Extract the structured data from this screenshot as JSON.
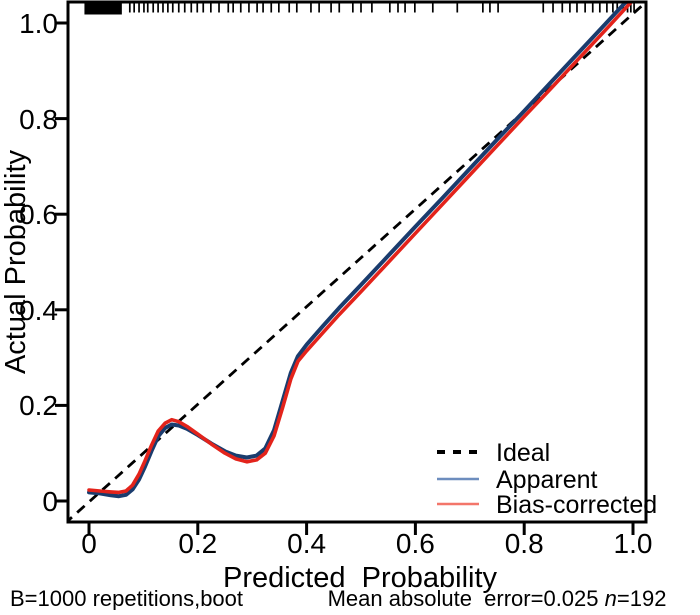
{
  "figure": {
    "bottom_left_note": "B=1000 repetitions,boot",
    "bottom_right_note_prefix": "Mean absolute  error=0.025 ",
    "bottom_right_n_symbol": "n",
    "bottom_right_n_value": "=192"
  },
  "chart_data": {
    "type": "line",
    "title": "",
    "xlabel": "Predicted  Probability",
    "ylabel": "Actual Probability",
    "xlim": [
      -0.04,
      1.02
    ],
    "ylim": [
      -0.05,
      1.04
    ],
    "grid": false,
    "legend_position": "bottom-right",
    "x_tick_values": [
      0,
      0.2,
      0.4,
      0.6,
      0.8,
      1.0
    ],
    "x_tick_labels": [
      "0",
      "0.2",
      "0.4",
      "0.6",
      "0.8",
      "1.0"
    ],
    "y_tick_values": [
      1.0,
      0.8,
      0.6,
      0.4,
      0.2,
      0
    ],
    "y_tick_labels": [
      "1.0",
      "0.8",
      "0.6",
      "0.4",
      "0.2",
      "0"
    ],
    "axis_color": "#000000",
    "rug_color": "#000000",
    "series": [
      {
        "name": "Ideal",
        "style": "dashed",
        "color": "#000000",
        "legend_color": "#000000",
        "points": [
          [
            -0.045,
            -0.048
          ],
          [
            1.03,
            1.05
          ]
        ]
      },
      {
        "name": "Apparent",
        "style": "solid",
        "color": "#1a3c6e",
        "legend_color": "#6d8dbe",
        "points": [
          [
            0.0,
            0.018
          ],
          [
            0.02,
            0.016
          ],
          [
            0.04,
            0.012
          ],
          [
            0.055,
            0.01
          ],
          [
            0.068,
            0.013
          ],
          [
            0.08,
            0.024
          ],
          [
            0.092,
            0.045
          ],
          [
            0.103,
            0.072
          ],
          [
            0.115,
            0.105
          ],
          [
            0.127,
            0.135
          ],
          [
            0.14,
            0.153
          ],
          [
            0.152,
            0.16
          ],
          [
            0.165,
            0.158
          ],
          [
            0.18,
            0.151
          ],
          [
            0.2,
            0.138
          ],
          [
            0.225,
            0.12
          ],
          [
            0.25,
            0.104
          ],
          [
            0.27,
            0.095
          ],
          [
            0.29,
            0.091
          ],
          [
            0.308,
            0.095
          ],
          [
            0.324,
            0.11
          ],
          [
            0.34,
            0.148
          ],
          [
            0.356,
            0.21
          ],
          [
            0.371,
            0.268
          ],
          [
            0.384,
            0.303
          ],
          [
            0.4,
            0.327
          ],
          [
            0.43,
            0.366
          ],
          [
            0.46,
            0.404
          ],
          [
            0.5,
            0.452
          ],
          [
            0.55,
            0.513
          ],
          [
            0.6,
            0.574
          ],
          [
            0.65,
            0.634
          ],
          [
            0.7,
            0.695
          ],
          [
            0.75,
            0.756
          ],
          [
            0.8,
            0.816
          ],
          [
            0.85,
            0.877
          ],
          [
            0.9,
            0.938
          ],
          [
            0.95,
            0.999
          ],
          [
            1.0,
            1.06
          ]
        ]
      },
      {
        "name": "Bias-corrected",
        "style": "solid",
        "color": "#e3231b",
        "legend_color": "#f3766a",
        "points": [
          [
            0.0,
            0.023
          ],
          [
            0.02,
            0.021
          ],
          [
            0.04,
            0.019
          ],
          [
            0.055,
            0.018
          ],
          [
            0.068,
            0.021
          ],
          [
            0.08,
            0.033
          ],
          [
            0.092,
            0.056
          ],
          [
            0.103,
            0.084
          ],
          [
            0.115,
            0.117
          ],
          [
            0.127,
            0.146
          ],
          [
            0.14,
            0.163
          ],
          [
            0.152,
            0.17
          ],
          [
            0.165,
            0.166
          ],
          [
            0.18,
            0.156
          ],
          [
            0.2,
            0.14
          ],
          [
            0.225,
            0.119
          ],
          [
            0.25,
            0.1
          ],
          [
            0.27,
            0.088
          ],
          [
            0.29,
            0.082
          ],
          [
            0.308,
            0.086
          ],
          [
            0.324,
            0.1
          ],
          [
            0.34,
            0.136
          ],
          [
            0.356,
            0.196
          ],
          [
            0.371,
            0.255
          ],
          [
            0.384,
            0.292
          ],
          [
            0.4,
            0.314
          ],
          [
            0.43,
            0.352
          ],
          [
            0.46,
            0.39
          ],
          [
            0.5,
            0.438
          ],
          [
            0.55,
            0.499
          ],
          [
            0.6,
            0.56
          ],
          [
            0.65,
            0.621
          ],
          [
            0.7,
            0.682
          ],
          [
            0.75,
            0.743
          ],
          [
            0.8,
            0.804
          ],
          [
            0.85,
            0.864
          ],
          [
            0.9,
            0.925
          ],
          [
            0.95,
            0.986
          ],
          [
            1.0,
            1.048
          ]
        ]
      }
    ],
    "rug": {
      "dense_range": [
        -0.006,
        0.058
      ],
      "dense_step": 0.002,
      "ticks": [
        0.075,
        0.083,
        0.092,
        0.101,
        0.108,
        0.118,
        0.127,
        0.136,
        0.145,
        0.154,
        0.165,
        0.176,
        0.188,
        0.199,
        0.21,
        0.224,
        0.239,
        0.256,
        0.265,
        0.279,
        0.294,
        0.309,
        0.32,
        0.335,
        0.349,
        0.368,
        0.382,
        0.408,
        0.423,
        0.445,
        0.46,
        0.485,
        0.5,
        0.52,
        0.553,
        0.568,
        0.581,
        0.599,
        0.632,
        0.677,
        0.724,
        0.737,
        0.752,
        0.835,
        0.853,
        0.87,
        0.884,
        0.897,
        0.912,
        0.926,
        0.939,
        0.952,
        0.963,
        0.971,
        0.982,
        0.99,
        0.996,
        1.002
      ]
    }
  }
}
